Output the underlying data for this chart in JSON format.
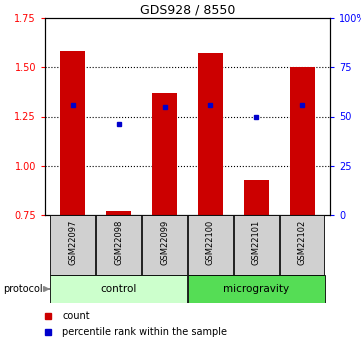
{
  "title": "GDS928 / 8550",
  "samples": [
    "GSM22097",
    "GSM22098",
    "GSM22099",
    "GSM22100",
    "GSM22101",
    "GSM22102"
  ],
  "bar_bottom": [
    0.75,
    0.75,
    0.75,
    0.75,
    0.75,
    0.75
  ],
  "bar_top": [
    1.58,
    0.77,
    1.37,
    1.57,
    0.93,
    1.5
  ],
  "blue_dot_y": [
    1.31,
    1.21,
    1.3,
    1.31,
    1.25,
    1.31
  ],
  "ylim": [
    0.75,
    1.75
  ],
  "yticks_left": [
    0.75,
    1.0,
    1.25,
    1.5,
    1.75
  ],
  "yticks_right": [
    0,
    25,
    50,
    75,
    100
  ],
  "ytick_labels_right": [
    "0",
    "25",
    "50",
    "75",
    "100%"
  ],
  "bar_color": "#cc0000",
  "dot_color": "#0000cc",
  "control_color": "#ccffcc",
  "micro_color": "#55dd55",
  "sample_box_color": "#d0d0d0",
  "protocol_label": "protocol",
  "legend_items": [
    "count",
    "percentile rank within the sample"
  ],
  "gridline_y": [
    1.0,
    1.25,
    1.5
  ],
  "bar_width": 0.55
}
